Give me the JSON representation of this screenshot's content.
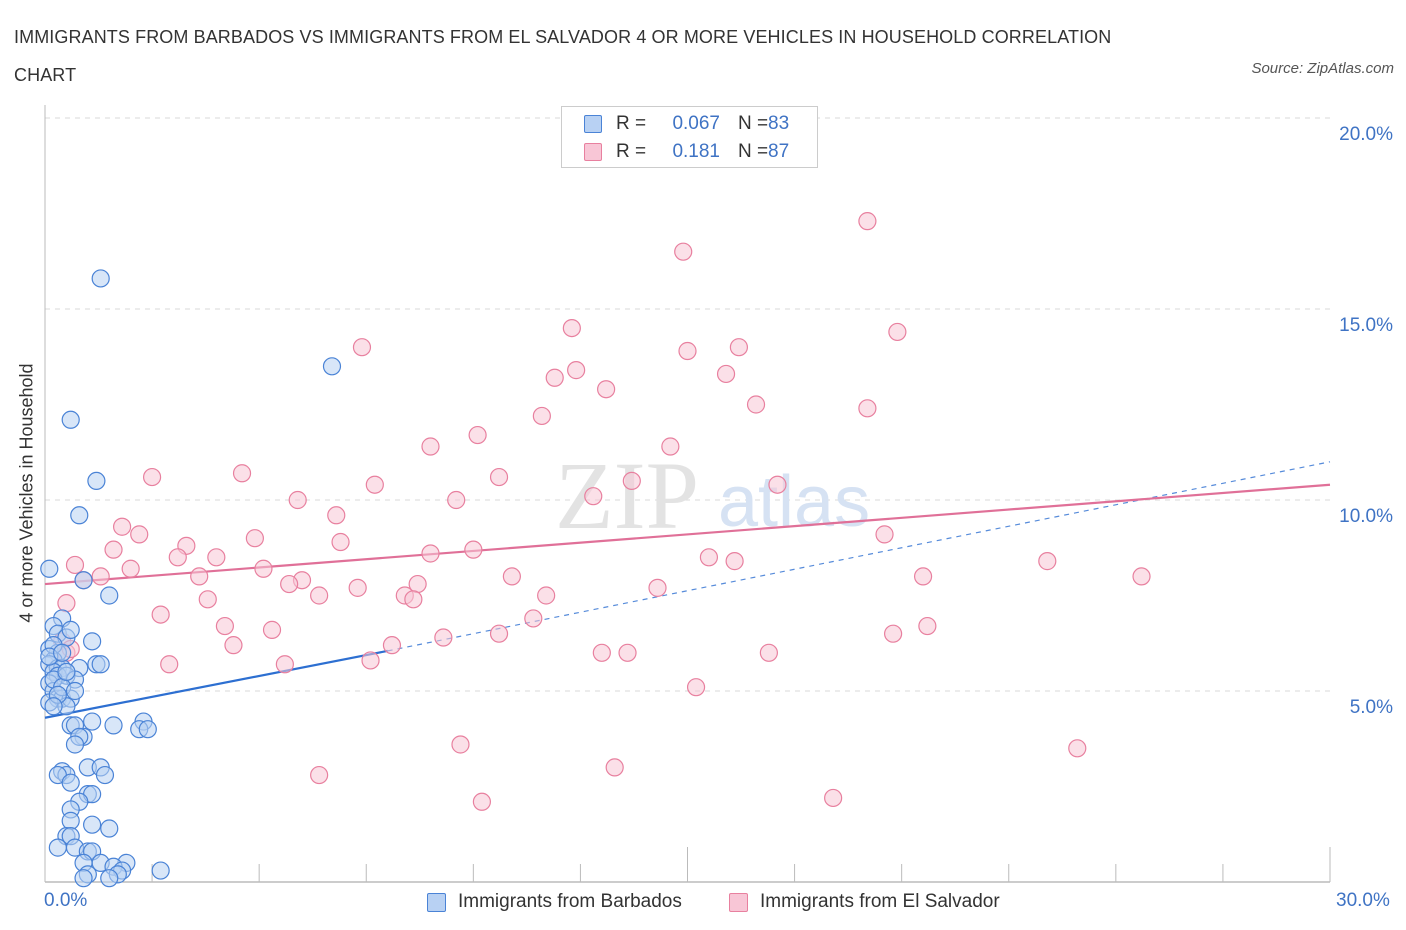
{
  "title": "IMMIGRANTS FROM BARBADOS VS IMMIGRANTS FROM EL SALVADOR 4 OR MORE VEHICLES IN HOUSEHOLD CORRELATION CHART",
  "source": "Source: ZipAtlas.com",
  "watermark": {
    "zip": "ZIP",
    "atlas": "atlas"
  },
  "legend": {
    "rows": [
      {
        "r_label": "R =",
        "r_value": "0.067",
        "n_label": "N =",
        "n_value": "83"
      },
      {
        "r_label": "R =",
        "r_value": "0.181",
        "n_label": "N =",
        "n_value": "87"
      }
    ]
  },
  "colors": {
    "blue_fill": "#b8d1f3",
    "blue_stroke": "#4a83d6",
    "blue_line": "#2d6fd1",
    "pink_fill": "#f8c6d6",
    "pink_stroke": "#e8809f",
    "pink_line": "#e07098",
    "tick_text": "#3f73c4",
    "grid": "#d8d8d8"
  },
  "chart_data": {
    "type": "scatter",
    "title": "IMMIGRANTS FROM BARBADOS VS IMMIGRANTS FROM EL SALVADOR 4 OR MORE VEHICLES IN HOUSEHOLD CORRELATION CHART",
    "xlabel": "",
    "ylabel": "4 or more Vehicles in Household",
    "xlim": [
      0,
      30
    ],
    "ylim": [
      0,
      20
    ],
    "x_tick_labels": {
      "min": "0.0%",
      "max": "30.0%"
    },
    "y_ticks": [
      {
        "value": 5,
        "label": "5.0%"
      },
      {
        "value": 10,
        "label": "10.0%"
      },
      {
        "value": 15,
        "label": "15.0%"
      },
      {
        "value": 20,
        "label": "20.0%"
      }
    ],
    "series": [
      {
        "name": "Immigrants from Barbados",
        "color": "blue",
        "R": 0.067,
        "N": 83,
        "trend_solid": [
          [
            0,
            4.3
          ],
          [
            8,
            6.05
          ]
        ],
        "trend_dashed": [
          [
            8,
            6.05
          ],
          [
            30,
            11.0
          ]
        ],
        "points": [
          [
            1.3,
            15.8
          ],
          [
            6.7,
            13.5
          ],
          [
            0.6,
            12.1
          ],
          [
            1.2,
            10.5
          ],
          [
            0.8,
            9.6
          ],
          [
            0.1,
            8.2
          ],
          [
            0.9,
            7.9
          ],
          [
            1.5,
            7.5
          ],
          [
            0.4,
            6.9
          ],
          [
            0.2,
            6.7
          ],
          [
            0.3,
            6.5
          ],
          [
            0.5,
            6.4
          ],
          [
            1.1,
            6.3
          ],
          [
            0.1,
            6.1
          ],
          [
            0.3,
            6.0
          ],
          [
            0.2,
            5.8
          ],
          [
            0.1,
            5.7
          ],
          [
            0.3,
            5.6
          ],
          [
            0.4,
            5.6
          ],
          [
            0.8,
            5.6
          ],
          [
            1.2,
            5.7
          ],
          [
            1.3,
            5.7
          ],
          [
            0.2,
            5.5
          ],
          [
            0.3,
            5.4
          ],
          [
            0.5,
            5.4
          ],
          [
            0.7,
            5.3
          ],
          [
            0.1,
            5.2
          ],
          [
            0.2,
            5.0
          ],
          [
            0.3,
            4.8
          ],
          [
            0.4,
            4.8
          ],
          [
            0.6,
            4.8
          ],
          [
            0.1,
            4.7
          ],
          [
            0.5,
            4.6
          ],
          [
            0.6,
            4.1
          ],
          [
            1.1,
            4.2
          ],
          [
            0.7,
            4.1
          ],
          [
            1.6,
            4.1
          ],
          [
            2.3,
            4.2
          ],
          [
            2.2,
            4.0
          ],
          [
            2.4,
            4.0
          ],
          [
            0.9,
            3.8
          ],
          [
            0.8,
            3.8
          ],
          [
            0.7,
            3.6
          ],
          [
            1.0,
            3.0
          ],
          [
            1.3,
            3.0
          ],
          [
            0.4,
            2.9
          ],
          [
            0.5,
            2.8
          ],
          [
            0.3,
            2.8
          ],
          [
            1.4,
            2.8
          ],
          [
            0.6,
            2.6
          ],
          [
            1.0,
            2.3
          ],
          [
            1.1,
            2.3
          ],
          [
            0.8,
            2.1
          ],
          [
            0.6,
            1.9
          ],
          [
            0.6,
            1.6
          ],
          [
            1.1,
            1.5
          ],
          [
            1.5,
            1.4
          ],
          [
            0.5,
            1.2
          ],
          [
            0.6,
            1.2
          ],
          [
            0.3,
            0.9
          ],
          [
            0.7,
            0.9
          ],
          [
            1.0,
            0.8
          ],
          [
            1.1,
            0.8
          ],
          [
            1.3,
            0.5
          ],
          [
            1.9,
            0.5
          ],
          [
            2.7,
            0.3
          ],
          [
            0.9,
            0.5
          ],
          [
            1.6,
            0.4
          ],
          [
            1.8,
            0.3
          ],
          [
            1.0,
            0.2
          ],
          [
            1.7,
            0.2
          ],
          [
            0.9,
            0.1
          ],
          [
            1.5,
            0.1
          ],
          [
            0.2,
            5.3
          ],
          [
            0.4,
            5.1
          ],
          [
            0.2,
            6.2
          ],
          [
            0.6,
            6.6
          ],
          [
            0.1,
            5.9
          ],
          [
            0.5,
            5.5
          ],
          [
            0.3,
            4.9
          ],
          [
            0.2,
            4.6
          ],
          [
            0.4,
            6.0
          ],
          [
            0.7,
            5.0
          ]
        ]
      },
      {
        "name": "Immigrants from El Salvador",
        "color": "pink",
        "R": 0.181,
        "N": 87,
        "trend_solid": [
          [
            0,
            7.8
          ],
          [
            30,
            10.4
          ]
        ],
        "points": [
          [
            19.2,
            17.3
          ],
          [
            14.9,
            16.5
          ],
          [
            12.3,
            14.5
          ],
          [
            19.9,
            14.4
          ],
          [
            7.4,
            14.0
          ],
          [
            15.0,
            13.9
          ],
          [
            16.2,
            14.0
          ],
          [
            12.4,
            13.4
          ],
          [
            11.9,
            13.2
          ],
          [
            15.9,
            13.3
          ],
          [
            13.1,
            12.9
          ],
          [
            16.6,
            12.5
          ],
          [
            19.2,
            12.4
          ],
          [
            11.6,
            12.2
          ],
          [
            10.1,
            11.7
          ],
          [
            9.0,
            11.4
          ],
          [
            14.6,
            11.4
          ],
          [
            2.5,
            10.6
          ],
          [
            4.6,
            10.7
          ],
          [
            10.6,
            10.6
          ],
          [
            7.7,
            10.4
          ],
          [
            13.7,
            10.5
          ],
          [
            17.1,
            10.4
          ],
          [
            12.8,
            10.1
          ],
          [
            5.9,
            10.0
          ],
          [
            9.6,
            10.0
          ],
          [
            6.8,
            9.6
          ],
          [
            1.8,
            9.3
          ],
          [
            2.2,
            9.1
          ],
          [
            4.9,
            9.0
          ],
          [
            6.9,
            8.9
          ],
          [
            1.6,
            8.7
          ],
          [
            3.3,
            8.8
          ],
          [
            9.0,
            8.6
          ],
          [
            10.0,
            8.7
          ],
          [
            3.1,
            8.5
          ],
          [
            4.0,
            8.5
          ],
          [
            15.5,
            8.5
          ],
          [
            16.1,
            8.4
          ],
          [
            19.6,
            9.1
          ],
          [
            23.4,
            8.4
          ],
          [
            0.7,
            8.3
          ],
          [
            2.0,
            8.2
          ],
          [
            5.1,
            8.2
          ],
          [
            1.3,
            8.0
          ],
          [
            3.6,
            8.0
          ],
          [
            10.9,
            8.0
          ],
          [
            20.5,
            8.0
          ],
          [
            25.6,
            8.0
          ],
          [
            0.9,
            7.9
          ],
          [
            6.0,
            7.9
          ],
          [
            5.7,
            7.8
          ],
          [
            8.7,
            7.8
          ],
          [
            7.3,
            7.7
          ],
          [
            14.3,
            7.7
          ],
          [
            6.4,
            7.5
          ],
          [
            8.4,
            7.5
          ],
          [
            8.6,
            7.4
          ],
          [
            11.7,
            7.5
          ],
          [
            3.8,
            7.4
          ],
          [
            0.5,
            7.3
          ],
          [
            2.7,
            7.0
          ],
          [
            11.4,
            6.9
          ],
          [
            4.2,
            6.7
          ],
          [
            5.3,
            6.6
          ],
          [
            10.6,
            6.5
          ],
          [
            9.3,
            6.4
          ],
          [
            19.8,
            6.5
          ],
          [
            20.6,
            6.7
          ],
          [
            0.4,
            6.3
          ],
          [
            4.4,
            6.2
          ],
          [
            8.1,
            6.2
          ],
          [
            0.5,
            6.0
          ],
          [
            13.0,
            6.0
          ],
          [
            13.6,
            6.0
          ],
          [
            16.9,
            6.0
          ],
          [
            7.6,
            5.8
          ],
          [
            2.9,
            5.7
          ],
          [
            5.6,
            5.7
          ],
          [
            15.2,
            5.1
          ],
          [
            9.7,
            3.6
          ],
          [
            24.1,
            3.5
          ],
          [
            13.3,
            3.0
          ],
          [
            6.4,
            2.8
          ],
          [
            10.2,
            2.1
          ],
          [
            18.4,
            2.2
          ],
          [
            0.6,
            6.1
          ]
        ]
      }
    ]
  },
  "bottom_legend": [
    {
      "label": "Immigrants from Barbados"
    },
    {
      "label": "Immigrants from El Salvador"
    }
  ]
}
